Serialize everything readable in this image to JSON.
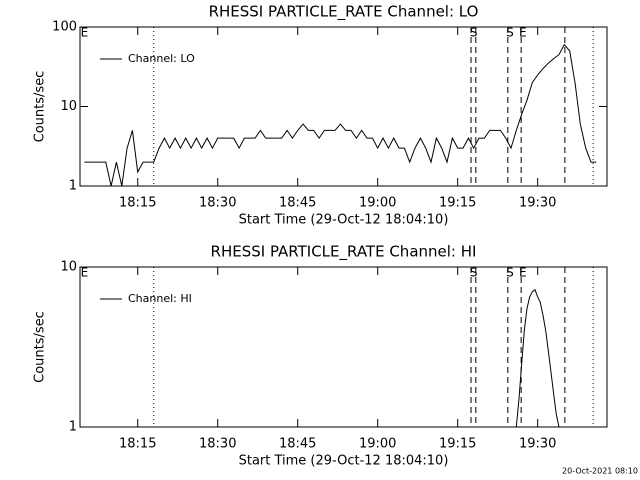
{
  "chart_data": [
    {
      "type": "line",
      "title": "RHESSI PARTICLE_RATE Channel: LO",
      "ylabel": "Counts/sec",
      "xlabel": "Start Time (29-Oct-12 18:04:10)",
      "yscale": "log",
      "ylim": [
        1,
        100
      ],
      "yticks": [
        1,
        10,
        100
      ],
      "xlim": [
        1084.17,
        1183
      ],
      "xticks": [
        {
          "value": 1095,
          "label": "18:15"
        },
        {
          "value": 1110,
          "label": "18:30"
        },
        {
          "value": 1125,
          "label": "18:45"
        },
        {
          "value": 1140,
          "label": "19:00"
        },
        {
          "value": 1155,
          "label": "19:15"
        },
        {
          "value": 1170,
          "label": "19:30"
        }
      ],
      "legend": "top-left",
      "markers": [
        {
          "x": 1098,
          "style": "dotted"
        },
        {
          "x": 1157.5,
          "style": "dashed"
        },
        {
          "x": 1158.4,
          "style": "dashed"
        },
        {
          "x": 1164.4,
          "style": "dashed"
        },
        {
          "x": 1166.9,
          "style": "dashed"
        },
        {
          "x": 1175.1,
          "style": "dashed"
        },
        {
          "x": 1180.4,
          "style": "dotted"
        }
      ],
      "annotations": [
        {
          "text": "E",
          "x": 1085
        },
        {
          "text": "S",
          "x": 1158
        },
        {
          "text": "S",
          "x": 1164.8
        },
        {
          "text": "E",
          "x": 1167.2
        }
      ],
      "x": [
        1085,
        1086,
        1087,
        1088,
        1089,
        1090,
        1091,
        1092,
        1093,
        1094,
        1095,
        1096,
        1097,
        1098,
        1099,
        1100,
        1101,
        1102,
        1103,
        1104,
        1105,
        1106,
        1107,
        1108,
        1109,
        1110,
        1111,
        1112,
        1113,
        1114,
        1115,
        1116,
        1117,
        1118,
        1119,
        1120,
        1121,
        1122,
        1123,
        1124,
        1125,
        1126,
        1127,
        1128,
        1129,
        1130,
        1131,
        1132,
        1133,
        1134,
        1135,
        1136,
        1137,
        1138,
        1139,
        1140,
        1141,
        1142,
        1143,
        1144,
        1145,
        1146,
        1147,
        1148,
        1149,
        1150,
        1151,
        1152,
        1153,
        1154,
        1155,
        1156,
        1157,
        1158,
        1159,
        1160,
        1161,
        1162,
        1163,
        1164,
        1165,
        1166,
        1167,
        1168,
        1169,
        1170,
        1171,
        1172,
        1173,
        1174,
        1175,
        1176,
        1177,
        1178,
        1179,
        1180,
        1181
      ],
      "series": [
        {
          "name": "Channel: LO",
          "color": "#000000",
          "values": [
            2,
            2,
            2,
            2,
            2,
            1,
            2,
            1,
            3,
            5,
            1.5,
            2,
            2,
            2,
            3,
            4,
            3,
            4,
            3,
            4,
            3,
            4,
            3,
            4,
            3,
            4,
            4,
            4,
            4,
            3,
            4,
            4,
            4,
            5,
            4,
            4,
            4,
            4,
            5,
            4,
            5,
            6,
            5,
            5,
            4,
            5,
            5,
            5,
            6,
            5,
            5,
            4,
            5,
            4,
            4,
            3,
            4,
            3,
            4,
            3,
            3,
            2,
            3,
            4,
            3,
            2,
            4,
            3,
            2,
            4,
            3,
            3,
            4,
            3,
            4,
            4,
            5,
            5,
            5,
            4,
            3,
            5,
            8,
            12,
            20,
            25,
            30,
            35,
            40,
            45,
            60,
            50,
            20,
            6,
            3,
            2,
            2
          ]
        }
      ]
    },
    {
      "type": "line",
      "title": "RHESSI PARTICLE_RATE Channel: HI",
      "ylabel": "Counts/sec",
      "xlabel": "Start Time (29-Oct-12 18:04:10)",
      "yscale": "log",
      "ylim": [
        1,
        10
      ],
      "yticks": [
        1,
        10
      ],
      "xlim": [
        1084.17,
        1183
      ],
      "xticks": [
        {
          "value": 1095,
          "label": "18:15"
        },
        {
          "value": 1110,
          "label": "18:30"
        },
        {
          "value": 1125,
          "label": "18:45"
        },
        {
          "value": 1140,
          "label": "19:00"
        },
        {
          "value": 1155,
          "label": "19:15"
        },
        {
          "value": 1170,
          "label": "19:30"
        }
      ],
      "legend": "top-left",
      "markers": [
        {
          "x": 1098,
          "style": "dotted"
        },
        {
          "x": 1157.5,
          "style": "dashed"
        },
        {
          "x": 1158.4,
          "style": "dashed"
        },
        {
          "x": 1164.4,
          "style": "dashed"
        },
        {
          "x": 1166.9,
          "style": "dashed"
        },
        {
          "x": 1175.1,
          "style": "dashed"
        },
        {
          "x": 1180.4,
          "style": "dotted"
        }
      ],
      "annotations": [
        {
          "text": "E",
          "x": 1085
        },
        {
          "text": "S",
          "x": 1158
        },
        {
          "text": "S",
          "x": 1164.8
        },
        {
          "text": "E",
          "x": 1167.2
        }
      ],
      "x": [
        1166,
        1166.5,
        1167,
        1167.5,
        1168,
        1168.5,
        1169,
        1169.5,
        1170,
        1170.5,
        1171,
        1171.5,
        1172,
        1172.5,
        1173,
        1173.5,
        1174
      ],
      "series": [
        {
          "name": "Channel: HI",
          "color": "#000000",
          "values": [
            1,
            1.5,
            2.5,
            4,
            5.5,
            6.5,
            7,
            7.2,
            6.5,
            6,
            5,
            4,
            3,
            2.2,
            1.6,
            1.2,
            1
          ]
        }
      ]
    }
  ],
  "footer": "20-Oct-2021 08:10"
}
